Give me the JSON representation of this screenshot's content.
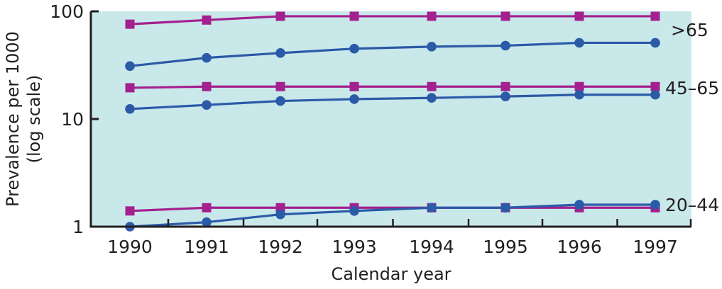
{
  "chart_data": {
    "type": "line",
    "title": "",
    "xlabel": "Calendar year",
    "ylabel": "Prevalence per 1000",
    "ylabel_sub": "(log scale)",
    "yscale": "log",
    "ylim": [
      1,
      100
    ],
    "yticks": [
      1,
      10,
      100
    ],
    "ytick_labels": [
      "1",
      "10",
      "100"
    ],
    "x": [
      1990,
      1991,
      1992,
      1993,
      1994,
      1995,
      1996,
      1997
    ],
    "x_labels": [
      "1990",
      "1991",
      "1992",
      "1993",
      "1994",
      "1995",
      "1996",
      "1997"
    ],
    "grid": false,
    "background": "#c9e8ea",
    "colors": {
      "purple": "#a3208f",
      "blue": "#2b5aa7"
    },
    "groups": [
      {
        "label": ">65",
        "label_y": 100
      },
      {
        "label": "45–65",
        "label_y": 20
      },
      {
        "label": "20–44",
        "label_y": 1.6
      }
    ],
    "series": [
      {
        "name": ">65 (squares)",
        "group": ">65",
        "marker": "square",
        "color": "#a3208f",
        "values": [
          76,
          83,
          90,
          90,
          90,
          90,
          90,
          90
        ]
      },
      {
        "name": ">65 (circles)",
        "group": ">65",
        "marker": "circle",
        "color": "#2b5aa7",
        "values": [
          31,
          37,
          41,
          45,
          47,
          48,
          51,
          51
        ]
      },
      {
        "name": "45–65 (squares)",
        "group": "45–65",
        "marker": "square",
        "color": "#a3208f",
        "values": [
          19.5,
          20,
          20,
          20,
          20,
          20,
          20,
          20
        ]
      },
      {
        "name": "45–65 (circles)",
        "group": "45–65",
        "marker": "circle",
        "color": "#2b5aa7",
        "values": [
          12.4,
          13.5,
          14.7,
          15.3,
          15.7,
          16.2,
          16.8,
          16.8
        ]
      },
      {
        "name": "20–44 (squares)",
        "group": "20–44",
        "marker": "square",
        "color": "#a3208f",
        "values": [
          1.4,
          1.5,
          1.5,
          1.5,
          1.5,
          1.5,
          1.5,
          1.5
        ]
      },
      {
        "name": "20–44 (circles)",
        "group": "20–44",
        "marker": "circle",
        "color": "#2b5aa7",
        "values": [
          1.0,
          1.1,
          1.3,
          1.4,
          1.5,
          1.5,
          1.6,
          1.6
        ]
      }
    ]
  }
}
